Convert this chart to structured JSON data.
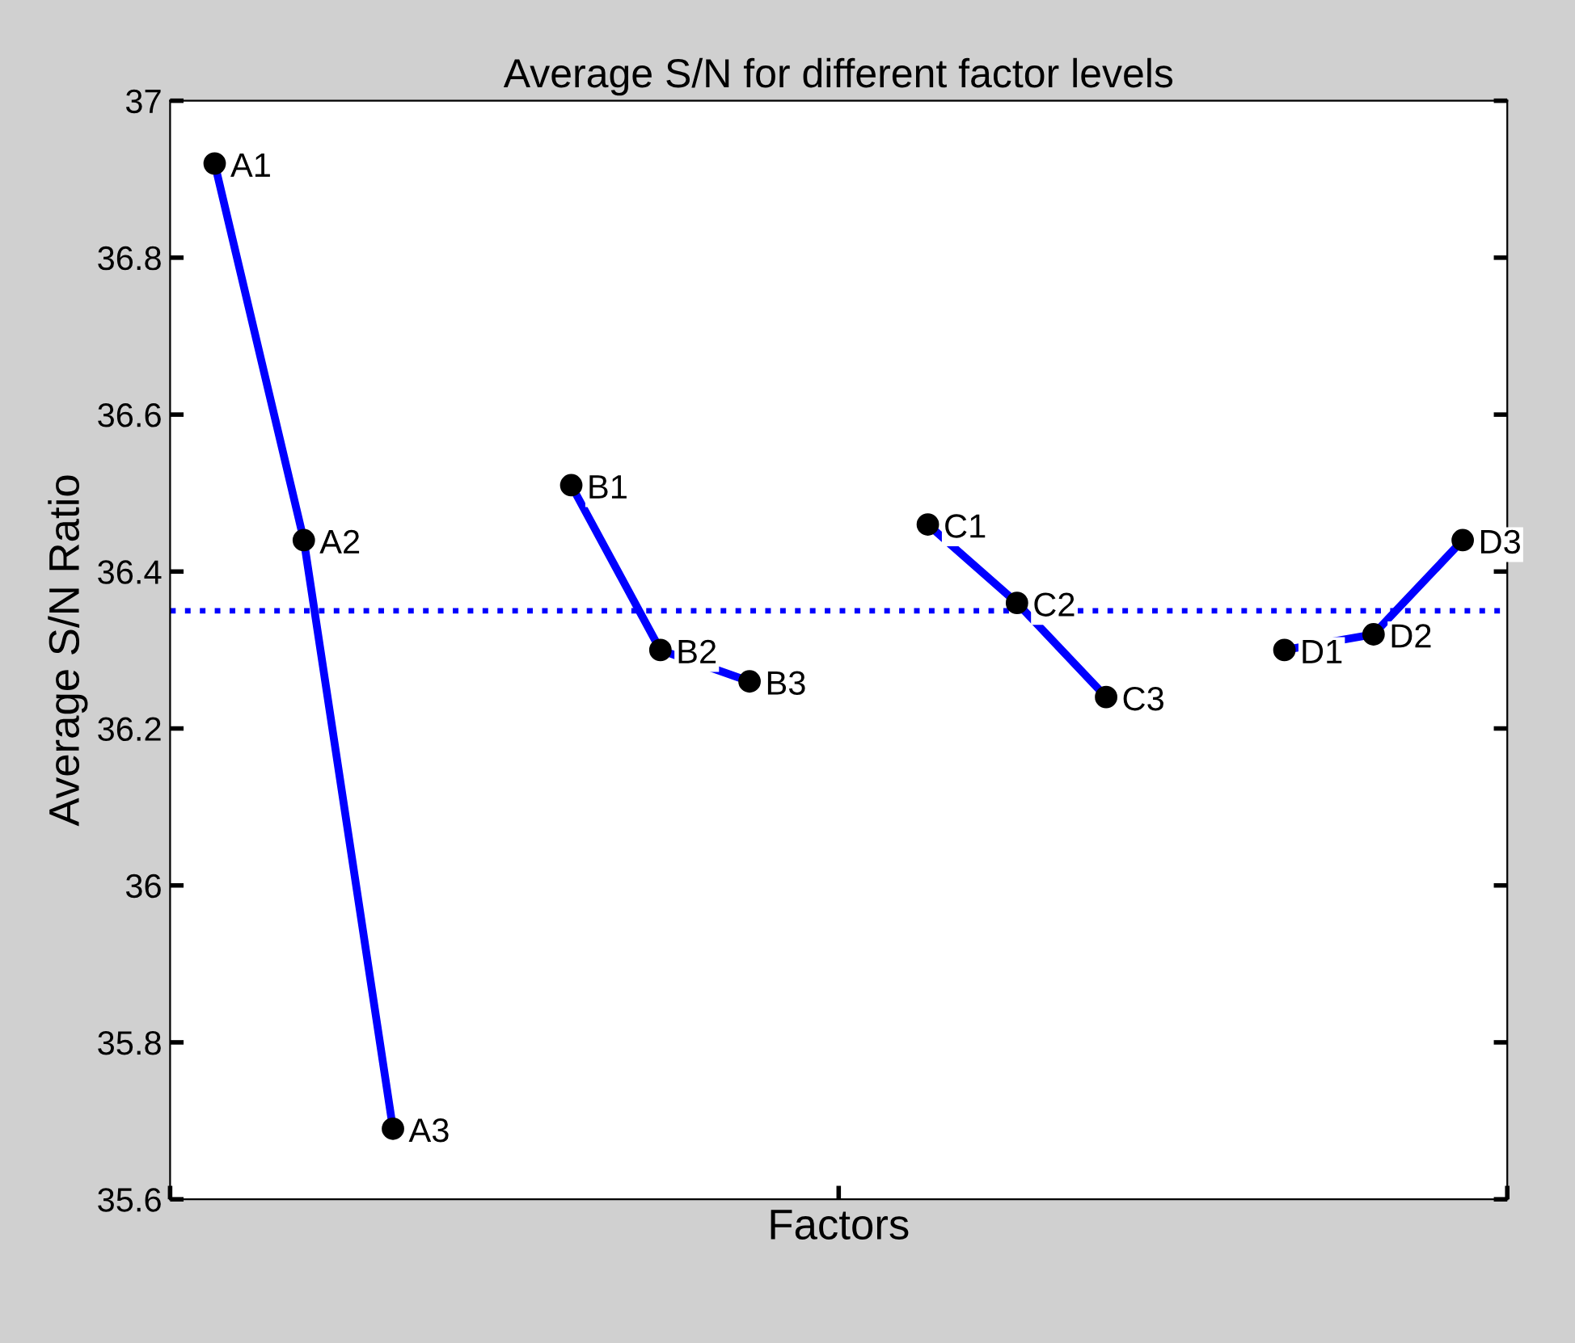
{
  "chart_data": {
    "type": "line",
    "title": "Average S/N for different factor levels",
    "xlabel": "Factors",
    "ylabel": "Average S/N Ratio",
    "categories": [
      null,
      null,
      null,
      null,
      null,
      null,
      null,
      null,
      null,
      null,
      null,
      null,
      null,
      null,
      null
    ],
    "ylim": [
      35.6,
      37
    ],
    "yticks": [
      35.6,
      35.8,
      36,
      36.2,
      36.4,
      36.6,
      36.8,
      37
    ],
    "tick_labels": "y",
    "grid": false,
    "marker": "circle",
    "line_style": "solid",
    "series": [
      {
        "color": "#0000ff",
        "values": [
          36.92,
          36.44,
          35.69,
          null,
          null,
          null,
          null,
          null,
          null,
          null,
          null,
          null,
          null,
          null,
          null
        ],
        "value_labels": [
          "A1",
          "A2",
          "A3",
          null,
          null,
          null,
          null,
          null,
          null,
          null,
          null,
          null,
          null,
          null,
          null
        ]
      },
      {
        "color": "#0000ff",
        "values": [
          null,
          null,
          null,
          null,
          36.51,
          36.3,
          36.26,
          null,
          null,
          null,
          null,
          null,
          null,
          null,
          null
        ],
        "value_labels": [
          null,
          null,
          null,
          null,
          "B1",
          "B2",
          "B3",
          null,
          null,
          null,
          null,
          null,
          null,
          null,
          null
        ]
      },
      {
        "color": "#0000ff",
        "values": [
          null,
          null,
          null,
          null,
          null,
          null,
          null,
          null,
          36.46,
          36.36,
          36.24,
          null,
          null,
          null,
          null
        ],
        "value_labels": [
          null,
          null,
          null,
          null,
          null,
          null,
          null,
          null,
          "C1",
          "C2",
          "C3",
          null,
          null,
          null,
          null
        ]
      },
      {
        "color": "#0000ff",
        "values": [
          null,
          null,
          null,
          null,
          null,
          null,
          null,
          null,
          null,
          null,
          null,
          null,
          36.3,
          36.32,
          36.44
        ],
        "value_labels": [
          null,
          null,
          null,
          null,
          null,
          null,
          null,
          null,
          null,
          null,
          null,
          null,
          "D1",
          "D2",
          "D3"
        ]
      }
    ],
    "ref_lines": [
      {
        "axis": "y",
        "value": 36.35,
        "color": "#0000ff",
        "line_style": "dotted"
      }
    ]
  }
}
